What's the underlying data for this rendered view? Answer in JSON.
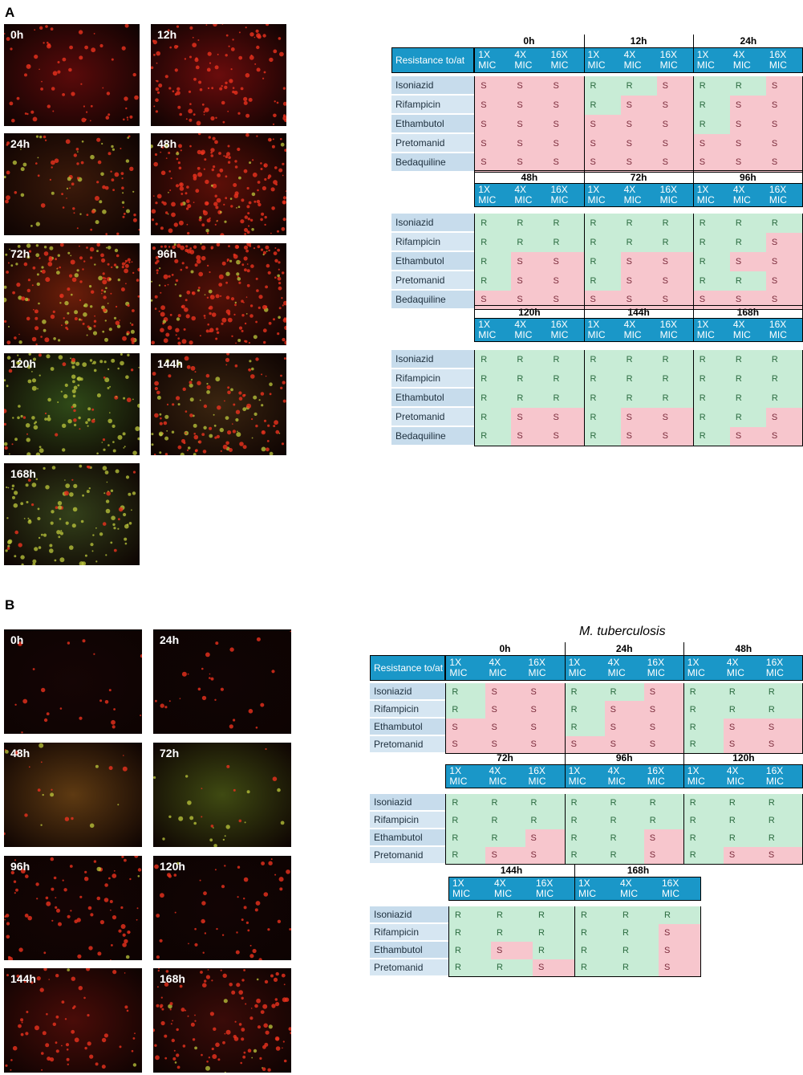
{
  "panels": [
    {
      "letter": "A",
      "images": [
        {
          "label": "0h",
          "tone": "#5a0a0a",
          "green": 0.0,
          "density": 0.25
        },
        {
          "label": "12h",
          "tone": "#6a0c0c",
          "green": 0.0,
          "density": 0.45
        },
        {
          "label": "24h",
          "tone": "#3c1a0a",
          "green": 0.35,
          "density": 0.35
        },
        {
          "label": "48h",
          "tone": "#5c0f08",
          "green": 0.15,
          "density": 0.7
        },
        {
          "label": "72h",
          "tone": "#6b1e0a",
          "green": 0.4,
          "density": 0.7
        },
        {
          "label": "96h",
          "tone": "#551108",
          "green": 0.15,
          "density": 0.8
        },
        {
          "label": "120h",
          "tone": "#2f4a18",
          "green": 0.8,
          "density": 0.5
        },
        {
          "label": "144h",
          "tone": "#3b2510",
          "green": 0.35,
          "density": 0.55
        },
        {
          "label": "168h",
          "tone": "#33401a",
          "green": 0.8,
          "density": 0.45
        }
      ],
      "table": {
        "header_first": "Resistance to/at",
        "drugs": [
          "Isoniazid",
          "Rifampicin",
          "Ethambutol",
          "Pretomanid",
          "Bedaquiline"
        ],
        "conc": [
          "1X MIC",
          "4X MIC",
          "16X MIC"
        ],
        "blocks": [
          {
            "timepoints": [
              "0h",
              "12h",
              "24h"
            ],
            "values": [
              [
                "S",
                "S",
                "S",
                "R",
                "R",
                "S",
                "R",
                "R",
                "S"
              ],
              [
                "S",
                "S",
                "S",
                "R",
                "S",
                "S",
                "R",
                "S",
                "S"
              ],
              [
                "S",
                "S",
                "S",
                "S",
                "S",
                "S",
                "R",
                "S",
                "S"
              ],
              [
                "S",
                "S",
                "S",
                "S",
                "S",
                "S",
                "S",
                "S",
                "S"
              ],
              [
                "S",
                "S",
                "S",
                "S",
                "S",
                "S",
                "S",
                "S",
                "S"
              ]
            ]
          },
          {
            "timepoints": [
              "48h",
              "72h",
              "96h"
            ],
            "values": [
              [
                "R",
                "R",
                "R",
                "R",
                "R",
                "R",
                "R",
                "R",
                "R"
              ],
              [
                "R",
                "R",
                "R",
                "R",
                "R",
                "R",
                "R",
                "R",
                "S"
              ],
              [
                "R",
                "S",
                "S",
                "R",
                "S",
                "S",
                "R",
                "S",
                "S"
              ],
              [
                "R",
                "S",
                "S",
                "R",
                "S",
                "S",
                "R",
                "R",
                "S"
              ],
              [
                "S",
                "S",
                "S",
                "S",
                "S",
                "S",
                "S",
                "S",
                "S"
              ]
            ]
          },
          {
            "timepoints": [
              "120h",
              "144h",
              "168h"
            ],
            "values": [
              [
                "R",
                "R",
                "R",
                "R",
                "R",
                "R",
                "R",
                "R",
                "R"
              ],
              [
                "R",
                "R",
                "R",
                "R",
                "R",
                "R",
                "R",
                "R",
                "R"
              ],
              [
                "R",
                "R",
                "R",
                "R",
                "R",
                "R",
                "R",
                "R",
                "R"
              ],
              [
                "R",
                "S",
                "S",
                "R",
                "S",
                "S",
                "R",
                "R",
                "S"
              ],
              [
                "R",
                "S",
                "S",
                "R",
                "S",
                "S",
                "R",
                "S",
                "S"
              ]
            ]
          }
        ]
      }
    },
    {
      "letter": "B",
      "species_title": "M. tuberculosis",
      "images": [
        {
          "label": "0h",
          "tone": "#150505",
          "green": 0.0,
          "density": 0.08
        },
        {
          "label": "24h",
          "tone": "#100404",
          "green": 0.0,
          "density": 0.1
        },
        {
          "label": "48h",
          "tone": "#5e3a12",
          "green": 0.45,
          "density": 0.08
        },
        {
          "label": "72h",
          "tone": "#3f4a12",
          "green": 0.7,
          "density": 0.1
        },
        {
          "label": "96h",
          "tone": "#150404",
          "green": 0.05,
          "density": 0.3
        },
        {
          "label": "120h",
          "tone": "#120404",
          "green": 0.05,
          "density": 0.2
        },
        {
          "label": "144h",
          "tone": "#4a0c08",
          "green": 0.05,
          "density": 0.25
        },
        {
          "label": "168h",
          "tone": "#3a0b08",
          "green": 0.1,
          "density": 0.45
        }
      ],
      "table": {
        "header_first": "Resistance to/at",
        "drugs": [
          "Isoniazid",
          "Rifampicin",
          "Ethambutol",
          "Pretomanid"
        ],
        "conc": [
          "1X MIC",
          "4X MIC",
          "16X MIC"
        ],
        "blocks": [
          {
            "timepoints": [
              "0h",
              "24h",
              "48h"
            ],
            "values": [
              [
                "R",
                "S",
                "S",
                "R",
                "R",
                "S",
                "R",
                "R",
                "R"
              ],
              [
                "R",
                "S",
                "S",
                "R",
                "S",
                "S",
                "R",
                "R",
                "R"
              ],
              [
                "S",
                "S",
                "S",
                "R",
                "S",
                "S",
                "R",
                "S",
                "S"
              ],
              [
                "S",
                "S",
                "S",
                "S",
                "S",
                "S",
                "R",
                "S",
                "S"
              ]
            ]
          },
          {
            "timepoints": [
              "72h",
              "96h",
              "120h"
            ],
            "values": [
              [
                "R",
                "R",
                "R",
                "R",
                "R",
                "R",
                "R",
                "R",
                "R"
              ],
              [
                "R",
                "R",
                "R",
                "R",
                "R",
                "R",
                "R",
                "R",
                "R"
              ],
              [
                "R",
                "R",
                "S",
                "R",
                "R",
                "S",
                "R",
                "R",
                "R"
              ],
              [
                "R",
                "S",
                "S",
                "R",
                "R",
                "S",
                "R",
                "S",
                "S"
              ]
            ]
          },
          {
            "timepoints": [
              "144h",
              "168h"
            ],
            "values": [
              [
                "R",
                "R",
                "R",
                "R",
                "R",
                "R"
              ],
              [
                "R",
                "R",
                "R",
                "R",
                "R",
                "S"
              ],
              [
                "R",
                "S",
                "R",
                "R",
                "R",
                "S"
              ],
              [
                "R",
                "R",
                "S",
                "R",
                "R",
                "S"
              ]
            ]
          }
        ]
      }
    }
  ]
}
